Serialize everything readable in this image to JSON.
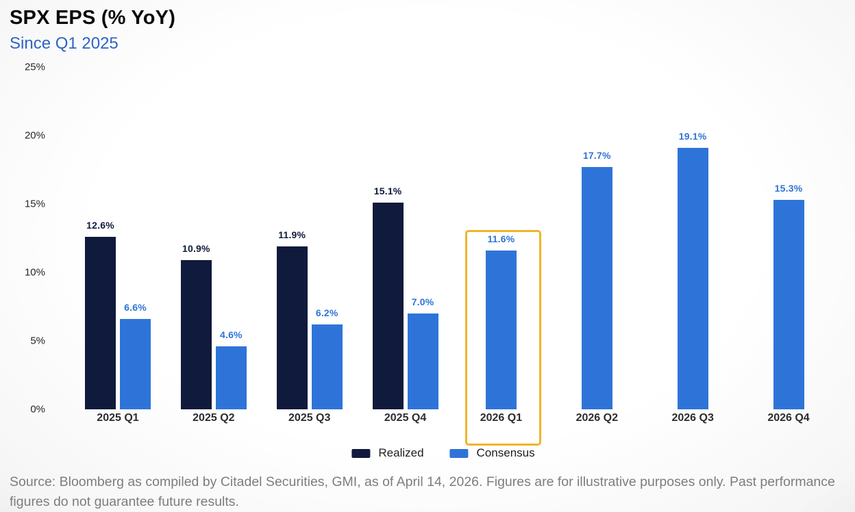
{
  "header": {
    "title": "SPX EPS (% YoY)",
    "subtitle": "Since Q1 2025"
  },
  "chart_data": {
    "type": "bar",
    "title": "SPX EPS (% YoY)",
    "subtitle": "Since Q1 2025",
    "categories": [
      "2025 Q1",
      "2025 Q2",
      "2025 Q3",
      "2025 Q4",
      "2026 Q1",
      "2026 Q2",
      "2026 Q3",
      "2026 Q4"
    ],
    "series": [
      {
        "name": "Realized",
        "color": "#101a3c",
        "values": [
          12.6,
          10.9,
          11.9,
          15.1,
          null,
          null,
          null,
          null
        ],
        "labels": [
          "12.6%",
          "10.9%",
          "11.9%",
          "15.1%",
          "",
          "",
          "",
          ""
        ]
      },
      {
        "name": "Consensus",
        "color": "#2e74d8",
        "values": [
          6.6,
          4.6,
          6.2,
          7.0,
          11.6,
          17.7,
          19.1,
          15.3
        ],
        "labels": [
          "6.6%",
          "4.6%",
          "6.2%",
          "7.0%",
          "11.6%",
          "17.7%",
          "19.1%",
          "15.3%"
        ]
      }
    ],
    "y_ticks": [
      "25%",
      "20%",
      "15%",
      "10%",
      "5%",
      "0%"
    ],
    "ylim": [
      0,
      25
    ],
    "grid": false,
    "legend_position": "bottom",
    "legend": [
      "Realized",
      "Consensus"
    ],
    "highlight": {
      "category": "2026 Q1",
      "border_color": "#f0b429"
    }
  },
  "footer": {
    "source_text": "Source: Bloomberg as compiled by Citadel Securities, GMI, as of April 14, 2026. Figures are for illustrative purposes only. Past performance figures do not guarantee future results."
  },
  "colors": {
    "realized": "#101a3c",
    "consensus": "#2e74d8",
    "highlight": "#f0b429",
    "subtitle_blue": "#2c65c2"
  }
}
